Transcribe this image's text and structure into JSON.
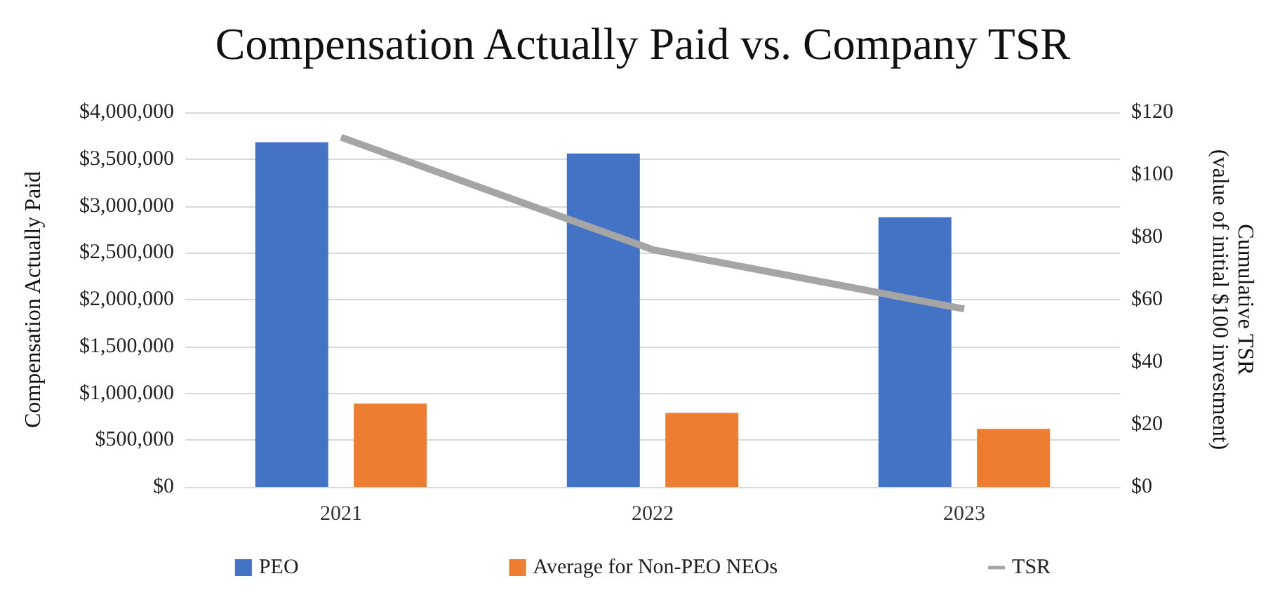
{
  "chart_data": {
    "type": "bar",
    "title": "Compensation Actually Paid vs. Company TSR",
    "ylabel": "Compensation Actually Paid",
    "y2label": "Cumulative TSR\n(value of initial $100 investment)",
    "categories": [
      "2021",
      "2022",
      "2023"
    ],
    "series": [
      {
        "name": "PEO",
        "color": "#4472c4",
        "values": [
          3680000,
          3560000,
          2880000
        ]
      },
      {
        "name": "Average for Non-PEO NEOs",
        "color": "#ed7d31",
        "values": [
          890000,
          790000,
          620000
        ]
      },
      {
        "name": "TSR",
        "type": "line",
        "axis": "y2",
        "color": "#a5a5a5",
        "values": [
          112,
          76,
          57
        ]
      }
    ],
    "ylim": [
      0,
      4000000
    ],
    "yticks": [
      {
        "value": 0,
        "label": "$0"
      },
      {
        "value": 500000,
        "label": "$500,000"
      },
      {
        "value": 1000000,
        "label": "$1,000,000"
      },
      {
        "value": 1500000,
        "label": "$1,500,000"
      },
      {
        "value": 2000000,
        "label": "$2,000,000"
      },
      {
        "value": 2500000,
        "label": "$2,500,000"
      },
      {
        "value": 3000000,
        "label": "$3,000,000"
      },
      {
        "value": 3500000,
        "label": "$3,500,000"
      },
      {
        "value": 4000000,
        "label": "$4,000,000"
      }
    ],
    "y2lim": [
      0,
      120
    ],
    "y2ticks": [
      {
        "value": 0,
        "label": "$0"
      },
      {
        "value": 20,
        "label": "$20"
      },
      {
        "value": 40,
        "label": "$40"
      },
      {
        "value": 60,
        "label": "$60"
      },
      {
        "value": 80,
        "label": "$80"
      },
      {
        "value": 100,
        "label": "$100"
      },
      {
        "value": 120,
        "label": "$120"
      }
    ],
    "grid": "y",
    "legend": "bottom",
    "marker": "none"
  }
}
